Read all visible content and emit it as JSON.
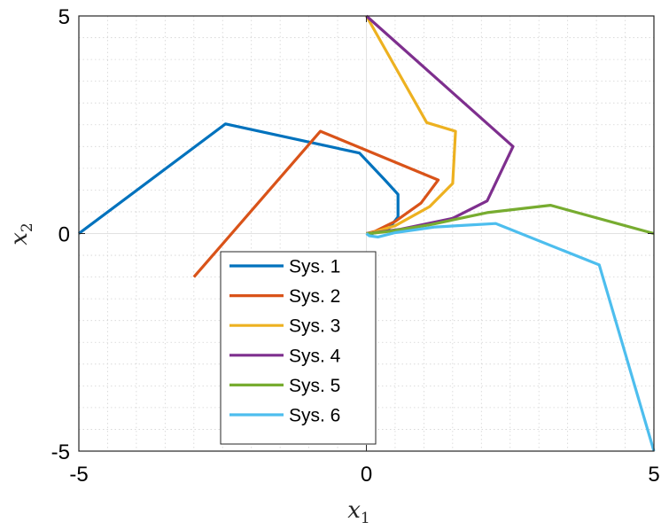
{
  "chart_data": {
    "type": "line",
    "title": "",
    "xlabel": "x",
    "xlabel_sub": "1",
    "ylabel": "x",
    "ylabel_sub": "2",
    "xlim": [
      -5,
      5
    ],
    "ylim": [
      -5,
      5
    ],
    "xticks": [
      -5,
      0,
      5
    ],
    "yticks": [
      -5,
      0,
      5
    ],
    "xtick_labels": [
      "-5",
      "0",
      "5"
    ],
    "ytick_labels": [
      "-5",
      "0",
      "5"
    ],
    "grid": "major+minor dotted",
    "legend_position": "bottom-center",
    "series": [
      {
        "name": "Sys. 1",
        "color": "#0072BD",
        "x": [
          -5,
          -2.45,
          -0.12,
          0.33,
          0.55,
          0.55,
          0.38,
          0.1,
          0.0
        ],
        "y": [
          0,
          2.52,
          1.85,
          1.22,
          0.9,
          0.38,
          0.1,
          0.0,
          0.0
        ]
      },
      {
        "name": "Sys. 2",
        "color": "#D95319",
        "x": [
          -3.0,
          -0.8,
          1.25,
          0.95,
          0.5,
          0.15,
          0.0
        ],
        "y": [
          -1.0,
          2.35,
          1.23,
          0.7,
          0.28,
          0.05,
          0.0
        ]
      },
      {
        "name": "Sys. 3",
        "color": "#EDB120",
        "x": [
          0.0,
          1.05,
          1.55,
          1.5,
          1.1,
          0.5,
          0.1,
          0.0
        ],
        "y": [
          5.0,
          2.55,
          2.35,
          1.15,
          0.62,
          0.18,
          0.02,
          0.0
        ]
      },
      {
        "name": "Sys. 4",
        "color": "#7E2F8E",
        "x": [
          0.0,
          2.55,
          2.1,
          1.5,
          0.6,
          0.1,
          0.0
        ],
        "y": [
          5.0,
          2.0,
          0.75,
          0.35,
          0.1,
          0.01,
          0.0
        ]
      },
      {
        "name": "Sys. 5",
        "color": "#77AC30",
        "x": [
          5.0,
          3.2,
          2.1,
          1.1,
          0.4,
          0.05,
          0.0
        ],
        "y": [
          0.0,
          0.65,
          0.48,
          0.2,
          0.05,
          0.0,
          0.0
        ]
      },
      {
        "name": "Sys. 6",
        "color": "#4DBEEE",
        "x": [
          5.0,
          4.05,
          2.25,
          1.2,
          0.5,
          0.2,
          0.05,
          0.0
        ],
        "y": [
          -5.0,
          -0.72,
          0.23,
          0.15,
          0.02,
          -0.08,
          -0.05,
          0.0
        ]
      }
    ]
  }
}
